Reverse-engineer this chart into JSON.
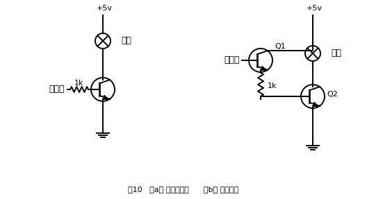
{
  "background_color": "#ffffff",
  "line_color": "#000000",
  "fig_width": 5.28,
  "fig_height": 2.87,
  "dpi": 100,
  "caption": "图10   （a） 基本电路图      （b） 改良电路",
  "label_fuza": "负载",
  "label_chufa": "触发器",
  "label_1k": "1k",
  "label_vcc": "+5v",
  "label_Q1": "Q1",
  "label_Q2": "Q2"
}
